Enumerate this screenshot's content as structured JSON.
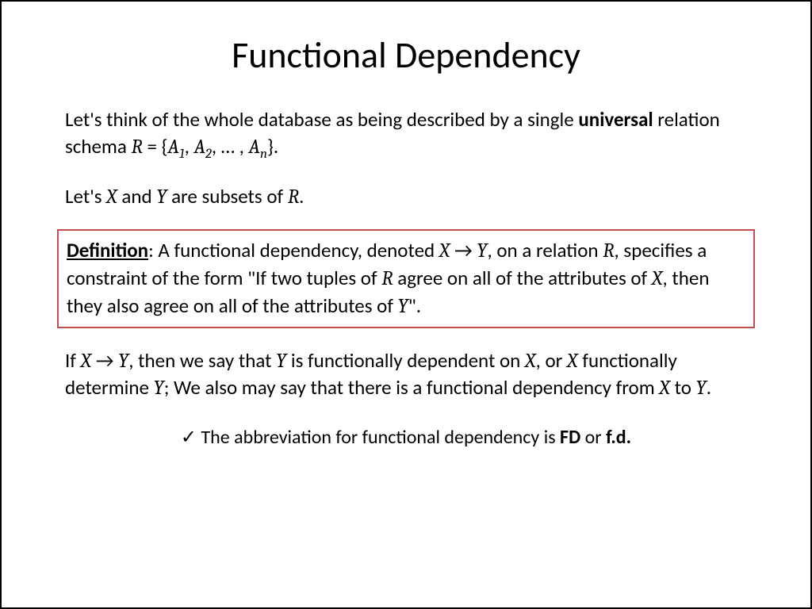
{
  "title": "Functional Dependency",
  "p1_a": "Let's think of the whole database as being described by a single ",
  "p1_b": "universal",
  "p1_c": " relation schema ",
  "p1_R": "R",
  "p1_eq": " =  {",
  "p1_A": "A",
  "p1_sub1": "1",
  "p1_comma": ", ",
  "p1_sub2": "2",
  "p1_dots": ", … , ",
  "p1_subn": "n",
  "p1_close": "}.",
  "p2_a": "Let's ",
  "p2_X": "X",
  "p2_b": " and ",
  "p2_Y": "Y",
  "p2_c": " are subsets of ",
  "p2_R": "R",
  "p2_d": ".",
  "def_label": "Definition",
  "def_a": ": A functional dependency, denoted ",
  "def_X": "X",
  "def_arrow": " → ",
  "def_Y": "Y",
  "def_b": ", on a relation ",
  "def_R": "R",
  "def_c": ", specifies a constraint of the form \"If two tuples of ",
  "def_d": " agree on all of the attributes of ",
  "def_e": ", then they also agree on all of the attributes of ",
  "def_f": "\".",
  "p3_a": "If ",
  "p3_b": ", then we say that ",
  "p3_c": " is functionally dependent on ",
  "p3_d": ", or ",
  "p3_e": " functionally determine ",
  "p3_f": "; We also may say that there is a functional dependency from ",
  "p3_g": " to ",
  "p3_h": ".",
  "foot_check": "✓",
  "foot_a": " The abbreviation for functional dependency is ",
  "foot_fd1": "FD",
  "foot_or": " or ",
  "foot_fd2": "f.d.",
  "colors": {
    "border": "#000000",
    "defbox_border": "#c0504d",
    "text": "#000000",
    "background": "#ffffff"
  },
  "fonts": {
    "title_size": 46,
    "body_size": 25,
    "footer_size": 24
  }
}
